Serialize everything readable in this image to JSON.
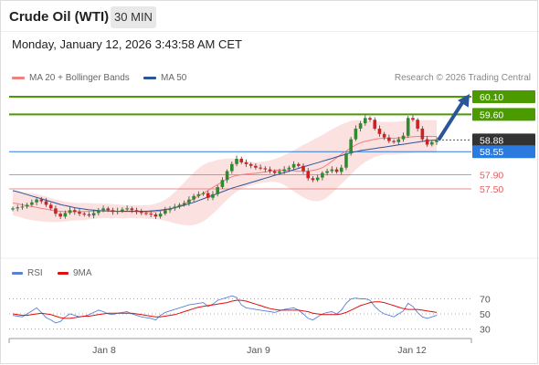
{
  "header": {
    "title": "Crude Oil (WTI)",
    "timeframe": "30 MIN",
    "datetime": "Monday, January 12, 2026 3:43:58 AM CET"
  },
  "legend": {
    "ma20_label": "MA 20 + Bollinger Bands",
    "ma50_label": "MA 50",
    "credit": "Research © 2026 Trading Central",
    "ma20_color": "#f08080",
    "ma50_color": "#2a5599"
  },
  "rsi_legend": {
    "rsi_label": "RSI",
    "ma_label": "9MA",
    "rsi_color": "#5b7fd6",
    "ma_color": "#e01010"
  },
  "chart_data": [
    {
      "type": "candlestick",
      "x_ticks": [
        "Jan 8",
        "Jan 9",
        "Jan 12"
      ],
      "levels": [
        {
          "value": 60.1,
          "label": "60.10",
          "color": "#4a9a00",
          "kind": "resistance"
        },
        {
          "value": 59.6,
          "label": "59.60",
          "color": "#4a9a00",
          "kind": "resistance"
        },
        {
          "value": 58.88,
          "label": "58.88",
          "color": "#333333",
          "kind": "current price"
        },
        {
          "value": 58.55,
          "label": "58.55",
          "color": "#2a7ae0",
          "kind": "pivot"
        },
        {
          "value": 57.9,
          "label": "57.90",
          "color": "#e06060",
          "kind": "support"
        },
        {
          "value": 57.5,
          "label": "57.50",
          "color": "#e06060",
          "kind": "support"
        }
      ],
      "forecast_arrow": {
        "from": 58.88,
        "to": 60.1,
        "color": "#2a5599"
      },
      "close": [
        56.95,
        56.98,
        57.0,
        57.05,
        57.12,
        57.2,
        57.15,
        57.05,
        56.95,
        56.8,
        56.72,
        56.82,
        56.9,
        56.85,
        56.8,
        56.78,
        56.75,
        56.82,
        56.9,
        56.95,
        56.9,
        56.85,
        56.88,
        56.92,
        56.95,
        56.9,
        56.85,
        56.82,
        56.8,
        56.78,
        56.72,
        56.8,
        56.9,
        56.95,
        57.0,
        57.05,
        57.1,
        57.2,
        57.3,
        57.35,
        57.38,
        57.25,
        57.35,
        57.55,
        57.75,
        58.0,
        58.2,
        58.35,
        58.25,
        58.2,
        58.15,
        58.1,
        58.08,
        58.05,
        58.0,
        57.95,
        58.0,
        58.05,
        58.1,
        58.2,
        58.15,
        58.0,
        57.8,
        57.75,
        57.82,
        57.95,
        58.0,
        58.05,
        57.98,
        58.1,
        58.5,
        58.9,
        59.2,
        59.35,
        59.5,
        59.45,
        59.2,
        59.05,
        58.95,
        58.85,
        58.82,
        58.9,
        59.0,
        59.5,
        59.45,
        59.2,
        58.9,
        58.75,
        58.82,
        58.88
      ],
      "ma20": [
        57.1,
        57.08,
        57.05,
        57.02,
        57.0,
        56.98,
        56.95,
        56.93,
        56.9,
        56.88,
        56.87,
        56.86,
        56.86,
        56.86,
        56.86,
        56.86,
        56.87,
        56.87,
        56.88,
        56.88,
        56.88,
        56.87,
        56.87,
        56.86,
        56.86,
        56.86,
        56.86,
        56.86,
        56.85,
        56.85,
        56.86,
        56.88,
        56.9,
        56.93,
        56.97,
        57.02,
        57.08,
        57.15,
        57.22,
        57.3,
        57.38,
        57.46,
        57.54,
        57.62,
        57.7,
        57.78,
        57.84,
        57.88,
        57.9,
        57.92,
        57.93,
        57.94,
        57.96,
        57.98,
        58.0,
        58.02,
        58.03,
        58.03,
        58.02,
        58.01,
        58.0,
        58.0,
        58.0,
        58.02,
        58.05,
        58.1,
        58.18,
        58.28,
        58.38,
        58.48,
        58.57,
        58.66,
        58.74,
        58.8,
        58.84,
        58.87,
        58.9,
        58.92,
        58.93,
        58.93,
        58.93,
        58.94,
        58.95,
        58.96,
        58.97,
        58.98,
        58.98,
        58.98,
        58.98,
        58.98
      ],
      "ma50": [
        57.45,
        57.42,
        57.38,
        57.34,
        57.3,
        57.26,
        57.22,
        57.18,
        57.14,
        57.1,
        57.06,
        57.03,
        57.0,
        56.97,
        56.95,
        56.93,
        56.91,
        56.9,
        56.89,
        56.88,
        56.88,
        56.87,
        56.87,
        56.87,
        56.87,
        56.87,
        56.87,
        56.87,
        56.87,
        56.88,
        56.89,
        56.9,
        56.92,
        56.94,
        56.97,
        57.0,
        57.04,
        57.08,
        57.12,
        57.17,
        57.22,
        57.27,
        57.32,
        57.37,
        57.42,
        57.47,
        57.52,
        57.56,
        57.6,
        57.64,
        57.68,
        57.72,
        57.76,
        57.8,
        57.84,
        57.88,
        57.92,
        57.96,
        58.0,
        58.04,
        58.08,
        58.12,
        58.16,
        58.2,
        58.24,
        58.28,
        58.32,
        58.36,
        58.4,
        58.44,
        58.48,
        58.52,
        58.55,
        58.58,
        58.6,
        58.62,
        58.64,
        58.66,
        58.68,
        58.7,
        58.72,
        58.74,
        58.76,
        58.78,
        58.8,
        58.82,
        58.84,
        58.86,
        58.87,
        58.88
      ],
      "band_width": [
        0.35,
        0.36,
        0.37,
        0.38,
        0.38,
        0.38,
        0.37,
        0.36,
        0.34,
        0.32,
        0.3,
        0.28,
        0.26,
        0.25,
        0.24,
        0.24,
        0.23,
        0.22,
        0.21,
        0.2,
        0.2,
        0.2,
        0.19,
        0.19,
        0.18,
        0.18,
        0.18,
        0.18,
        0.19,
        0.2,
        0.22,
        0.25,
        0.3,
        0.36,
        0.44,
        0.52,
        0.6,
        0.68,
        0.74,
        0.78,
        0.8,
        0.78,
        0.74,
        0.7,
        0.64,
        0.58,
        0.52,
        0.46,
        0.4,
        0.36,
        0.33,
        0.31,
        0.3,
        0.3,
        0.3,
        0.32,
        0.36,
        0.42,
        0.5,
        0.58,
        0.66,
        0.74,
        0.8,
        0.86,
        0.9,
        0.92,
        0.92,
        0.9,
        0.87,
        0.84,
        0.8,
        0.76,
        0.7,
        0.64,
        0.58,
        0.54,
        0.5,
        0.48,
        0.46,
        0.46,
        0.46,
        0.46,
        0.46,
        0.46,
        0.46,
        0.46,
        0.46,
        0.46,
        0.46,
        0.46
      ]
    },
    {
      "type": "line",
      "title": "RSI",
      "y_ticks": [
        30,
        50,
        70
      ],
      "rsi": [
        48,
        47,
        46,
        50,
        54,
        58,
        52,
        45,
        42,
        38,
        40,
        46,
        50,
        48,
        46,
        47,
        49,
        52,
        55,
        53,
        50,
        49,
        51,
        52,
        53,
        50,
        48,
        46,
        45,
        44,
        42,
        48,
        52,
        54,
        56,
        58,
        60,
        62,
        63,
        64,
        65,
        60,
        63,
        68,
        70,
        72,
        74,
        72,
        62,
        58,
        57,
        56,
        55,
        54,
        53,
        52,
        54,
        56,
        57,
        58,
        55,
        50,
        44,
        42,
        46,
        50,
        52,
        53,
        50,
        55,
        64,
        70,
        71,
        70,
        70,
        68,
        60,
        54,
        50,
        48,
        46,
        50,
        54,
        64,
        60,
        52,
        46,
        44,
        46,
        48
      ],
      "ma9": [
        50,
        49,
        48,
        48,
        49,
        50,
        51,
        50,
        49,
        47,
        45,
        44,
        44,
        45,
        46,
        47,
        47,
        48,
        49,
        50,
        51,
        51,
        51,
        51,
        51,
        51,
        50,
        49,
        48,
        47,
        46,
        46,
        47,
        48,
        49,
        51,
        53,
        55,
        57,
        59,
        60,
        61,
        62,
        63,
        64,
        65,
        67,
        68,
        68,
        67,
        65,
        63,
        61,
        59,
        57,
        56,
        55,
        55,
        55,
        55,
        55,
        54,
        53,
        51,
        50,
        49,
        49,
        49,
        49,
        50,
        52,
        55,
        58,
        61,
        63,
        65,
        66,
        66,
        65,
        63,
        61,
        59,
        57,
        56,
        56,
        56,
        55,
        54,
        53,
        52
      ]
    }
  ]
}
